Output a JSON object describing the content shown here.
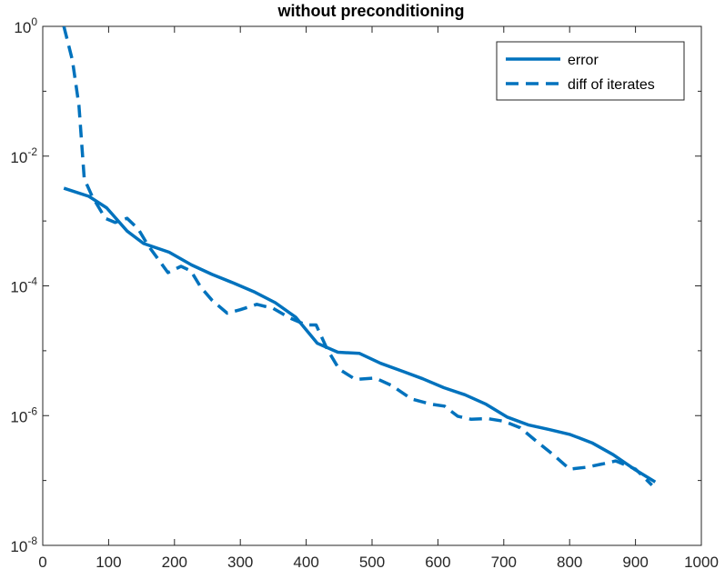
{
  "chart_data": {
    "type": "line",
    "title": "without preconditioning",
    "xlabel": "",
    "ylabel": "",
    "xlim": [
      0,
      1000
    ],
    "ylim": [
      1e-08,
      1
    ],
    "yscale": "log",
    "x_ticks": [
      0,
      100,
      200,
      300,
      400,
      500,
      600,
      700,
      800,
      900,
      1000
    ],
    "x_tick_labels": [
      "0",
      "100",
      "200",
      "300",
      "400",
      "500",
      "600",
      "700",
      "800",
      "900",
      "1000"
    ],
    "y_ticks": [
      1e-08,
      1e-06,
      0.0001,
      0.01,
      1
    ],
    "y_tick_labels": [
      {
        "base": "10",
        "exp": "-8"
      },
      {
        "base": "10",
        "exp": "-6"
      },
      {
        "base": "10",
        "exp": "-4"
      },
      {
        "base": "10",
        "exp": "-2"
      },
      {
        "base": "10",
        "exp": "0"
      }
    ],
    "grid": false,
    "legend_location": "top-right",
    "color": "#0072BD",
    "series": [
      {
        "name": "error",
        "style": "solid",
        "x": [
          32,
          70,
          97,
          128,
          153,
          192,
          226,
          257,
          290,
          322,
          353,
          384,
          417,
          448,
          481,
          513,
          547,
          577,
          609,
          641,
          673,
          705,
          737,
          769,
          801,
          834,
          866,
          898,
          930
        ],
        "y": [
          0.0032,
          0.0024,
          0.0016,
          0.0007,
          0.00045,
          0.00033,
          0.00021,
          0.00015,
          0.00011,
          8e-05,
          5.5e-05,
          3.3e-05,
          1.3e-05,
          9.5e-06,
          9.1e-06,
          6.4e-06,
          4.8e-06,
          3.7e-06,
          2.7e-06,
          2.1e-06,
          1.5e-06,
          9.5e-07,
          7.2e-07,
          6.1e-07,
          5.1e-07,
          3.8e-07,
          2.5e-07,
          1.5e-07,
          9.5e-08
        ]
      },
      {
        "name": "diff of iterates",
        "style": "dashed",
        "x": [
          32,
          45,
          55,
          63,
          75,
          95,
          110,
          128,
          145,
          160,
          175,
          190,
          210,
          225,
          240,
          257,
          280,
          300,
          325,
          350,
          375,
          400,
          415,
          432,
          450,
          475,
          505,
          530,
          560,
          590,
          610,
          630,
          650,
          675,
          700,
          725,
          750,
          775,
          800,
          825,
          850,
          870,
          900,
          925
        ],
        "y": [
          1.0,
          0.3,
          0.06,
          0.0045,
          0.0024,
          0.0011,
          0.00095,
          0.0011,
          0.00075,
          0.00042,
          0.00026,
          0.00016,
          0.0002,
          0.00017,
          9.5e-05,
          6e-05,
          3.8e-05,
          4.3e-05,
          5.2e-05,
          4.5e-05,
          3.2e-05,
          2.5e-05,
          2.5e-05,
          1.05e-05,
          5.2e-06,
          3.6e-06,
          3.8e-06,
          2.9e-06,
          1.8e-06,
          1.5e-06,
          1.4e-06,
          9.8e-07,
          8.8e-07,
          9e-07,
          8.2e-07,
          6.5e-07,
          4e-07,
          2.5e-07,
          1.5e-07,
          1.6e-07,
          1.8e-07,
          2e-07,
          1.5e-07,
          8.5e-08
        ]
      }
    ]
  }
}
